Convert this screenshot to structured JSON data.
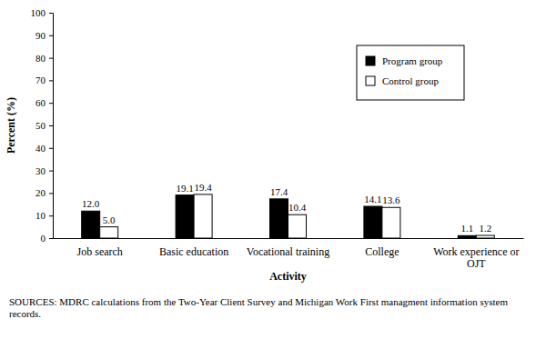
{
  "chart_data": {
    "type": "bar",
    "x_label": "Activity",
    "y_label": "Percent (%)",
    "categories": [
      "Job search",
      "Basic education",
      "Vocational training",
      "College",
      "Work experience or OJT"
    ],
    "series": [
      {
        "name": "Program group",
        "color": "#000000",
        "values": [
          12.0,
          19.1,
          17.4,
          14.1,
          1.1
        ],
        "value_labels": [
          "12.0",
          "19.1",
          "17.4",
          "14.1",
          "1.1"
        ]
      },
      {
        "name": "Control group",
        "color": "#ffffff",
        "values": [
          5.0,
          19.4,
          10.4,
          13.6,
          1.2
        ],
        "value_labels": [
          "5.0",
          "19.4",
          "10.4",
          "13.6",
          "1.2"
        ]
      }
    ],
    "ylim": [
      0,
      100
    ],
    "yticks": [
      0,
      10,
      20,
      30,
      40,
      50,
      60,
      70,
      80,
      90,
      100
    ],
    "grid": false,
    "legend": "top-right",
    "data_labels": true,
    "annotations": [
      "SOURCES: MDRC calculations from the Two-Year Client Survey and Michigan Work First managment information system records."
    ]
  }
}
